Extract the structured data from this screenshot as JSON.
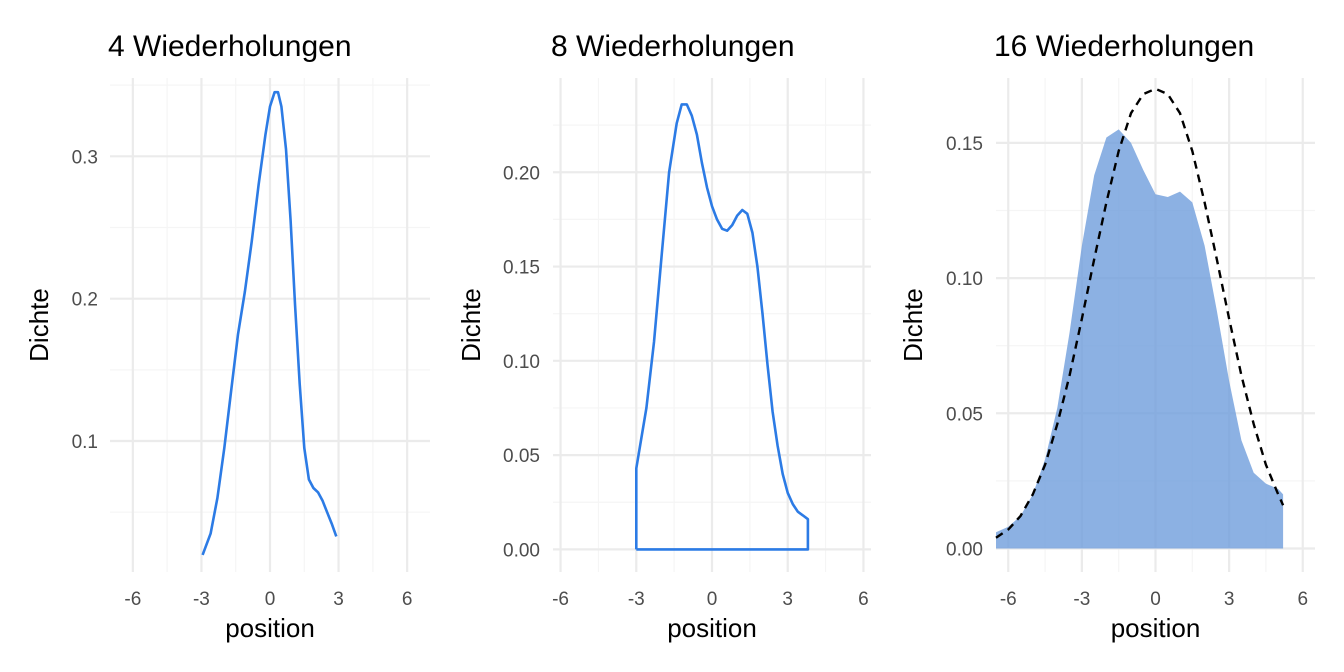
{
  "colors": {
    "background": "#ffffff",
    "grid_major": "#ebebeb",
    "grid_minor": "#f5f5f5",
    "line_blue": "#2c7be5",
    "fill_blue": "#6f9edc",
    "reference": "#000000"
  },
  "chart_data": [
    {
      "type": "line",
      "title": "4 Wiederholungen",
      "xlabel": "position",
      "ylabel": "Dichte",
      "xlim": [
        -7,
        7
      ],
      "ylim": [
        0.008,
        0.355
      ],
      "xticks": [
        -6,
        -3,
        0,
        3,
        6
      ],
      "xtick_labels": [
        "-6",
        "-3",
        "0",
        "3",
        "6"
      ],
      "yticks": [
        0.1,
        0.2,
        0.3
      ],
      "ytick_labels": [
        "0.1",
        "0.2",
        "0.3"
      ],
      "grid": true,
      "series": [
        {
          "style": "solid-line",
          "color": "#2c7be5",
          "x": [
            -2.95,
            -2.6,
            -2.3,
            -2.0,
            -1.7,
            -1.4,
            -1.1,
            -0.8,
            -0.5,
            -0.2,
            0.0,
            0.2,
            0.35,
            0.5,
            0.7,
            0.9,
            1.1,
            1.3,
            1.5,
            1.7,
            1.9,
            2.1,
            2.3,
            2.5,
            2.7,
            2.9
          ],
          "y": [
            0.02,
            0.035,
            0.06,
            0.095,
            0.135,
            0.175,
            0.205,
            0.24,
            0.28,
            0.315,
            0.335,
            0.345,
            0.345,
            0.335,
            0.305,
            0.255,
            0.195,
            0.14,
            0.095,
            0.073,
            0.067,
            0.064,
            0.058,
            0.05,
            0.042,
            0.033
          ]
        }
      ]
    },
    {
      "type": "line",
      "title": "8 Wiederholungen",
      "xlabel": "position",
      "ylabel": "Dichte",
      "xlim": [
        -6.3,
        6.3
      ],
      "ylim": [
        -0.012,
        0.25
      ],
      "xticks": [
        -6,
        -3,
        0,
        3,
        6
      ],
      "xtick_labels": [
        "-6",
        "-3",
        "0",
        "3",
        "6"
      ],
      "yticks": [
        0.0,
        0.05,
        0.1,
        0.15,
        0.2
      ],
      "ytick_labels": [
        "0.00",
        "0.05",
        "0.10",
        "0.15",
        "0.20"
      ],
      "grid": true,
      "series": [
        {
          "style": "closed-outline",
          "color": "#2c7be5",
          "x": [
            -3.0,
            -3.0,
            -2.6,
            -2.3,
            -2.0,
            -1.7,
            -1.4,
            -1.2,
            -1.0,
            -0.8,
            -0.6,
            -0.4,
            -0.2,
            0.0,
            0.2,
            0.4,
            0.6,
            0.8,
            1.0,
            1.2,
            1.4,
            1.6,
            1.8,
            2.0,
            2.2,
            2.4,
            2.6,
            2.8,
            3.0,
            3.2,
            3.4,
            3.6,
            3.8,
            3.8
          ],
          "y": [
            0.0,
            0.043,
            0.075,
            0.11,
            0.155,
            0.2,
            0.226,
            0.236,
            0.236,
            0.23,
            0.22,
            0.205,
            0.192,
            0.182,
            0.175,
            0.17,
            0.169,
            0.172,
            0.177,
            0.18,
            0.178,
            0.168,
            0.15,
            0.125,
            0.098,
            0.073,
            0.055,
            0.04,
            0.03,
            0.024,
            0.02,
            0.018,
            0.016,
            0.0
          ]
        }
      ]
    },
    {
      "type": "area",
      "title": "16 Wiederholungen",
      "xlabel": "position",
      "ylabel": "Dichte",
      "xlim": [
        -6.5,
        6.5
      ],
      "ylim": [
        -0.0087,
        0.174
      ],
      "xticks": [
        -6,
        -3,
        0,
        3,
        6
      ],
      "xtick_labels": [
        "-6",
        "-3",
        "0",
        "3",
        "6"
      ],
      "yticks": [
        0.0,
        0.05,
        0.1,
        0.15
      ],
      "ytick_labels": [
        "0.00",
        "0.05",
        "0.10",
        "0.15"
      ],
      "grid": true,
      "series": [
        {
          "style": "filled-area",
          "color": "#6f9edc",
          "x": [
            -6.5,
            -6.0,
            -5.5,
            -5.0,
            -4.5,
            -4.0,
            -3.5,
            -3.0,
            -2.5,
            -2.0,
            -1.5,
            -1.0,
            -0.5,
            0.0,
            0.5,
            1.0,
            1.5,
            2.0,
            2.5,
            3.0,
            3.5,
            4.0,
            4.5,
            5.0,
            5.2
          ],
          "y": [
            0.006,
            0.008,
            0.012,
            0.02,
            0.033,
            0.052,
            0.08,
            0.112,
            0.138,
            0.152,
            0.155,
            0.15,
            0.14,
            0.131,
            0.13,
            0.132,
            0.128,
            0.112,
            0.088,
            0.062,
            0.04,
            0.028,
            0.024,
            0.022,
            0.02
          ]
        },
        {
          "style": "dashed-line",
          "color": "#000000",
          "x": [
            -6.5,
            -6.0,
            -5.5,
            -5.0,
            -4.5,
            -4.0,
            -3.5,
            -3.0,
            -2.5,
            -2.0,
            -1.5,
            -1.0,
            -0.5,
            0.0,
            0.5,
            1.0,
            1.5,
            2.0,
            2.5,
            3.0,
            3.5,
            4.0,
            4.5,
            5.0,
            5.2
          ],
          "y": [
            0.004,
            0.007,
            0.012,
            0.02,
            0.031,
            0.046,
            0.064,
            0.085,
            0.107,
            0.128,
            0.147,
            0.161,
            0.168,
            0.17,
            0.168,
            0.161,
            0.147,
            0.128,
            0.107,
            0.085,
            0.064,
            0.046,
            0.031,
            0.02,
            0.016
          ]
        }
      ]
    }
  ]
}
